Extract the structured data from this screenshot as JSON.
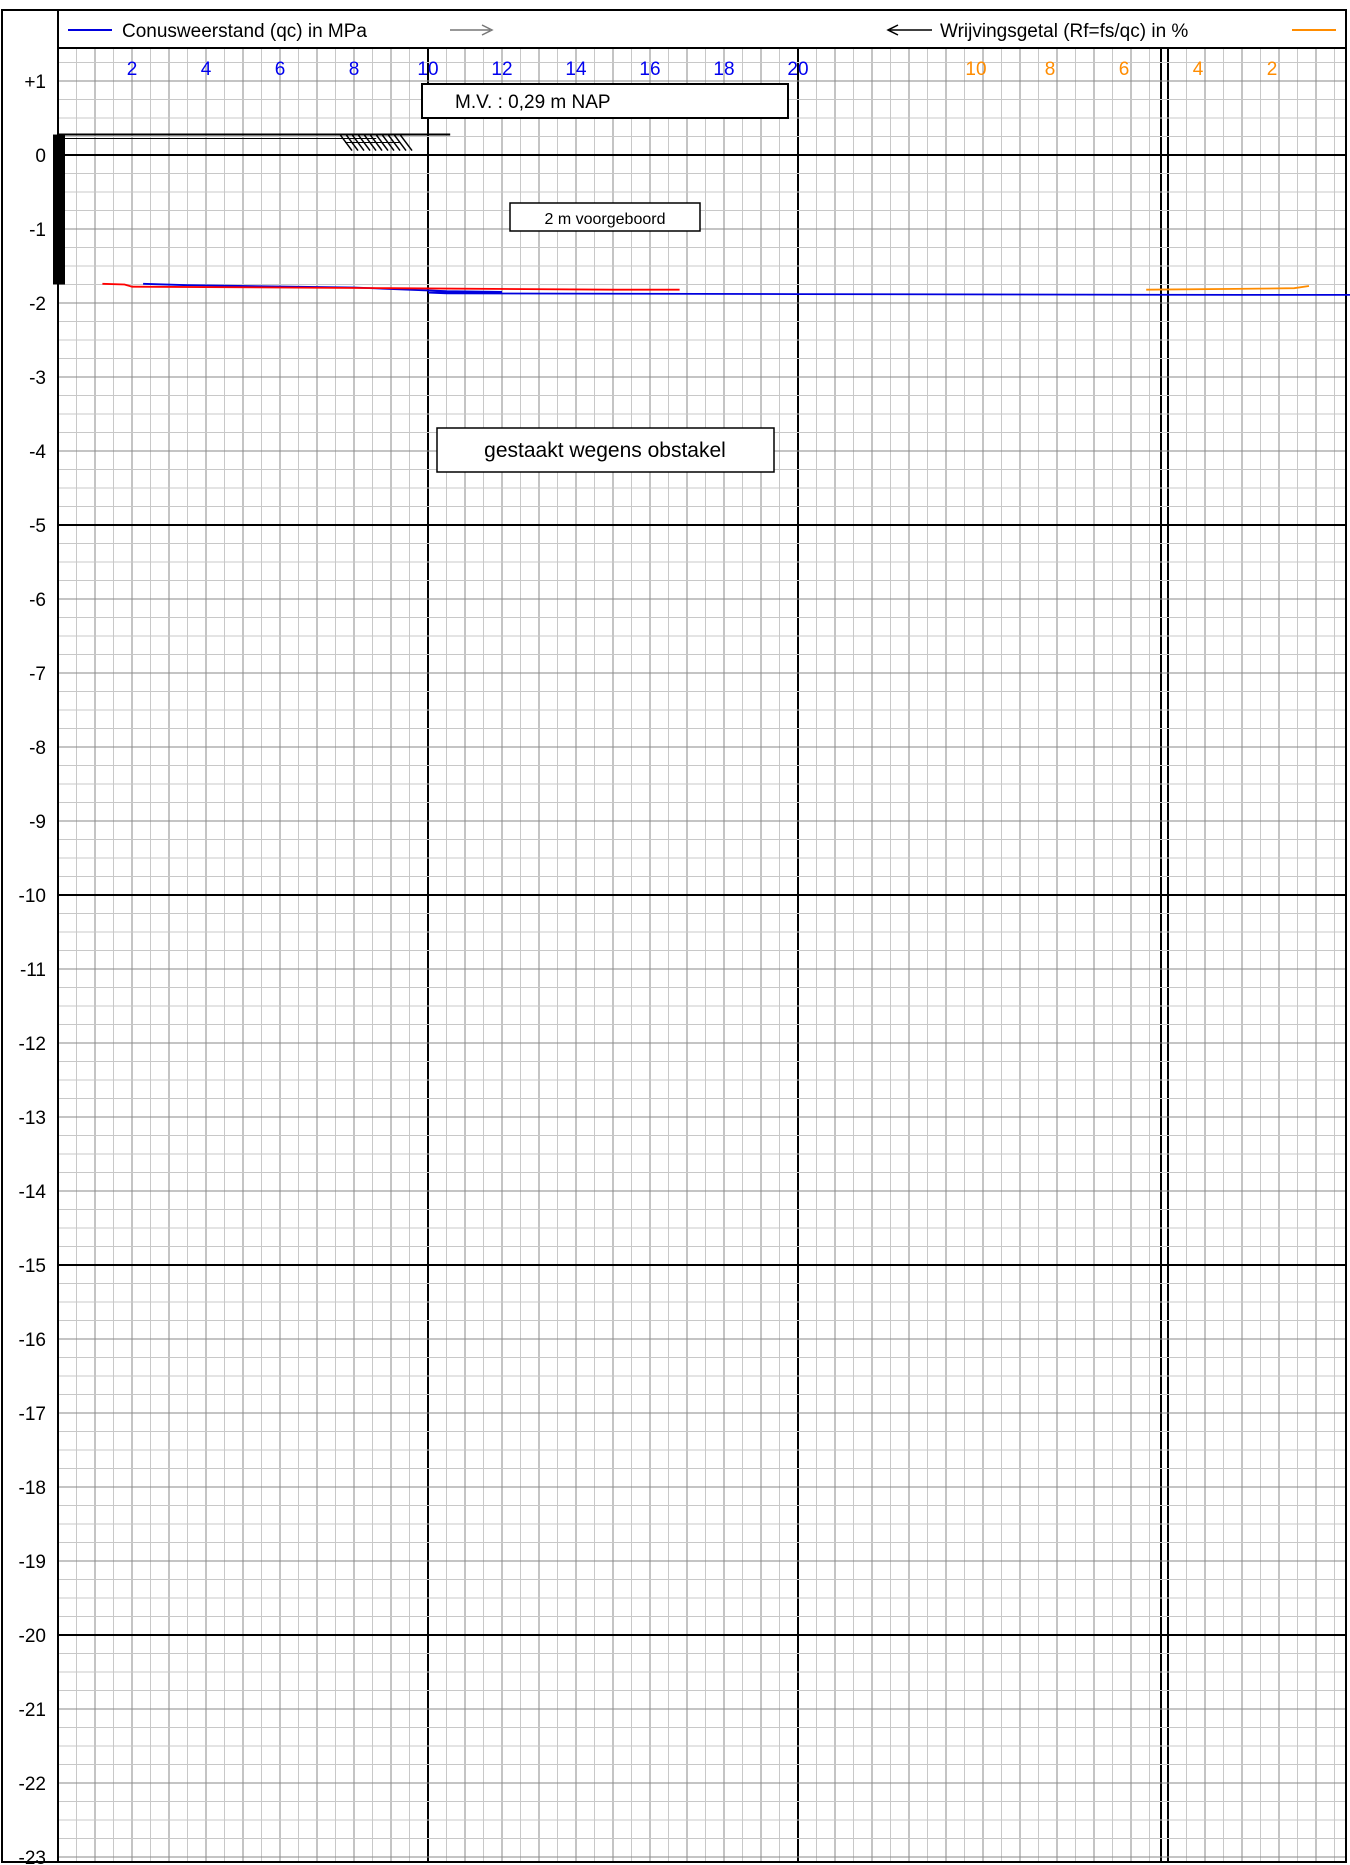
{
  "chart_data": {
    "type": "line",
    "legend": {
      "qc_label": "Conusweerstand (qc) in MPa",
      "qc_color": "#0000dd",
      "rf_label": "Wrijvingsgetal (Rf=fs/qc) in %",
      "rf_color": "#ff8c00",
      "fs_color": "#ff0000"
    },
    "qc_axis": {
      "ticks": [
        "2",
        "4",
        "6",
        "8",
        "10",
        "12",
        "14",
        "16",
        "18",
        "20"
      ],
      "range": [
        0,
        40
      ]
    },
    "rf_axis": {
      "ticks": [
        "10",
        "8",
        "6",
        "4",
        "2"
      ],
      "range": [
        0,
        10
      ],
      "reversed": true
    },
    "depth_axis": {
      "ticks": [
        "+1",
        "0",
        "-1",
        "-2",
        "-3",
        "-4",
        "-5",
        "-6",
        "-7",
        "-8",
        "-9",
        "-10",
        "-11",
        "-12",
        "-13",
        "-14",
        "-15",
        "-16",
        "-17",
        "-18",
        "-19",
        "-20",
        "-21",
        "-22",
        "-23"
      ],
      "range": [
        1.95,
        -23
      ]
    },
    "series": [
      {
        "key": "qc",
        "values": [
          [
            2.3,
            -1.74
          ],
          [
            3.5,
            -1.76
          ],
          [
            8.0,
            -1.79
          ],
          [
            10.5,
            -1.84
          ],
          [
            12.0,
            -1.85
          ],
          [
            10.0,
            -1.86
          ],
          [
            10.5,
            -1.87
          ],
          [
            20.0,
            -1.88
          ],
          [
            32.0,
            -1.89
          ],
          [
            38.0,
            -1.89
          ]
        ]
      },
      {
        "key": "fs",
        "values": [
          [
            1.2,
            -1.74
          ],
          [
            1.8,
            -1.75
          ],
          [
            2.0,
            -1.78
          ],
          [
            9.0,
            -1.8
          ],
          [
            15.0,
            -1.82
          ],
          [
            16.8,
            -1.82
          ]
        ]
      },
      {
        "key": "rf",
        "values": [
          [
            5.4,
            -1.82
          ],
          [
            3.0,
            -1.81
          ],
          [
            1.4,
            -1.8
          ],
          [
            1.0,
            -1.77
          ]
        ]
      }
    ],
    "annotations": {
      "mv_label": "M.V. :   0,29  m NAP",
      "predrill_label": "2 m  voorgeboord",
      "stop_label": "gestaakt wegens obstakel",
      "predrill_depth": -1.75
    }
  }
}
